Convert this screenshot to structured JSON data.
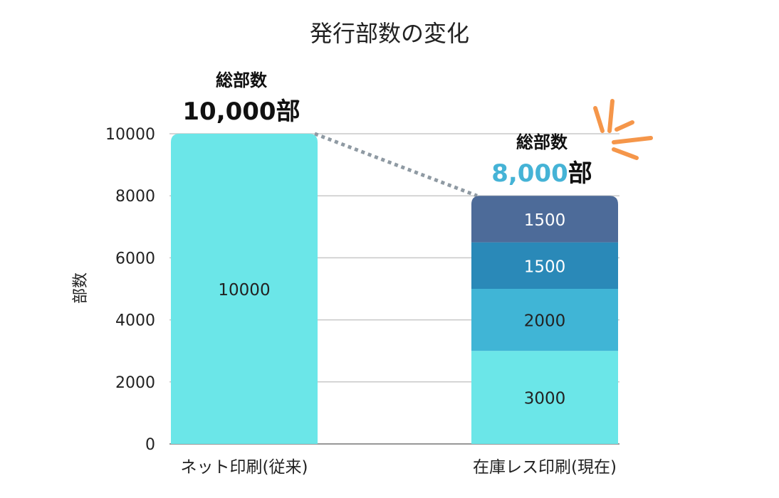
{
  "chart_data": {
    "type": "bar",
    "stacked": true,
    "title": "発行部数の変化",
    "xlabel": "",
    "ylabel": "部数",
    "ylim": [
      0,
      10000
    ],
    "yticks": [
      0,
      2000,
      4000,
      6000,
      8000,
      10000
    ],
    "grid": true,
    "categories": [
      "ネット印刷(従来)",
      "在庫レス印刷(現在)"
    ],
    "series": [
      {
        "name": "segment-1",
        "colors": [
          "#6be6e8",
          "#6be6e8"
        ],
        "values": [
          10000,
          3000
        ]
      },
      {
        "name": "segment-2",
        "colors": [
          "#6be6e8",
          "#40b5d6"
        ],
        "values": [
          0,
          2000
        ]
      },
      {
        "name": "segment-3",
        "colors": [
          "#6be6e8",
          "#2a89b8"
        ],
        "values": [
          0,
          1500
        ]
      },
      {
        "name": "segment-4",
        "colors": [
          "#6be6e8",
          "#4d6b99"
        ],
        "values": [
          0,
          1500
        ]
      }
    ],
    "label_colors": [
      "#222222",
      "#222222",
      "#ffffff",
      "#ffffff"
    ],
    "annotations": [
      {
        "category_index": 0,
        "label": "総部数",
        "value_text": "10,000",
        "unit": "部",
        "value_color": "#111111"
      },
      {
        "category_index": 1,
        "label": "総部数",
        "value_text": "8,000",
        "unit": "部",
        "value_color": "#45b3d6"
      }
    ],
    "connector": {
      "from": 10000,
      "to": 8000,
      "color": "#8f9aa3",
      "style": "dotted"
    },
    "accent_color": "#f5964a"
  }
}
